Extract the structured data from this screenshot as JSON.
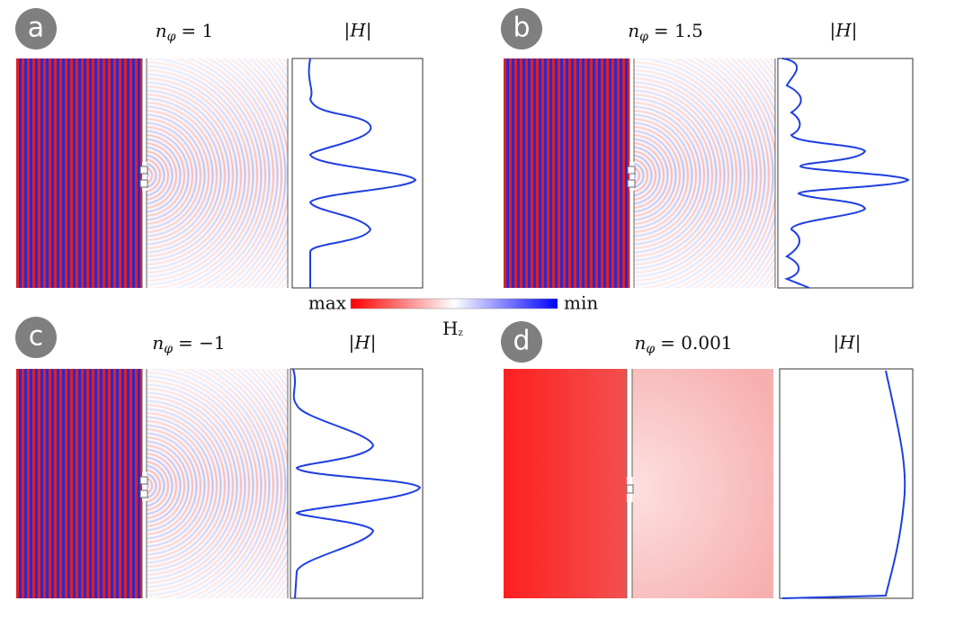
{
  "panels": [
    {
      "label": "a",
      "symbol": "n",
      "subscript": "φ",
      "value": "= 1",
      "profile_label": "|H|"
    },
    {
      "label": "b",
      "symbol": "n",
      "subscript": "φ",
      "value": "= 1.5",
      "profile_label": "|H|"
    },
    {
      "label": "c",
      "symbol": "n",
      "subscript": "φ",
      "value": "= −1",
      "profile_label": "|H|"
    },
    {
      "label": "d",
      "symbol": "n",
      "subscript": "φ",
      "value": "= 0.001",
      "profile_label": "|H|"
    }
  ],
  "colorbar": {
    "max": "max",
    "min": "min",
    "symbol": "H",
    "subscript": "z"
  }
}
